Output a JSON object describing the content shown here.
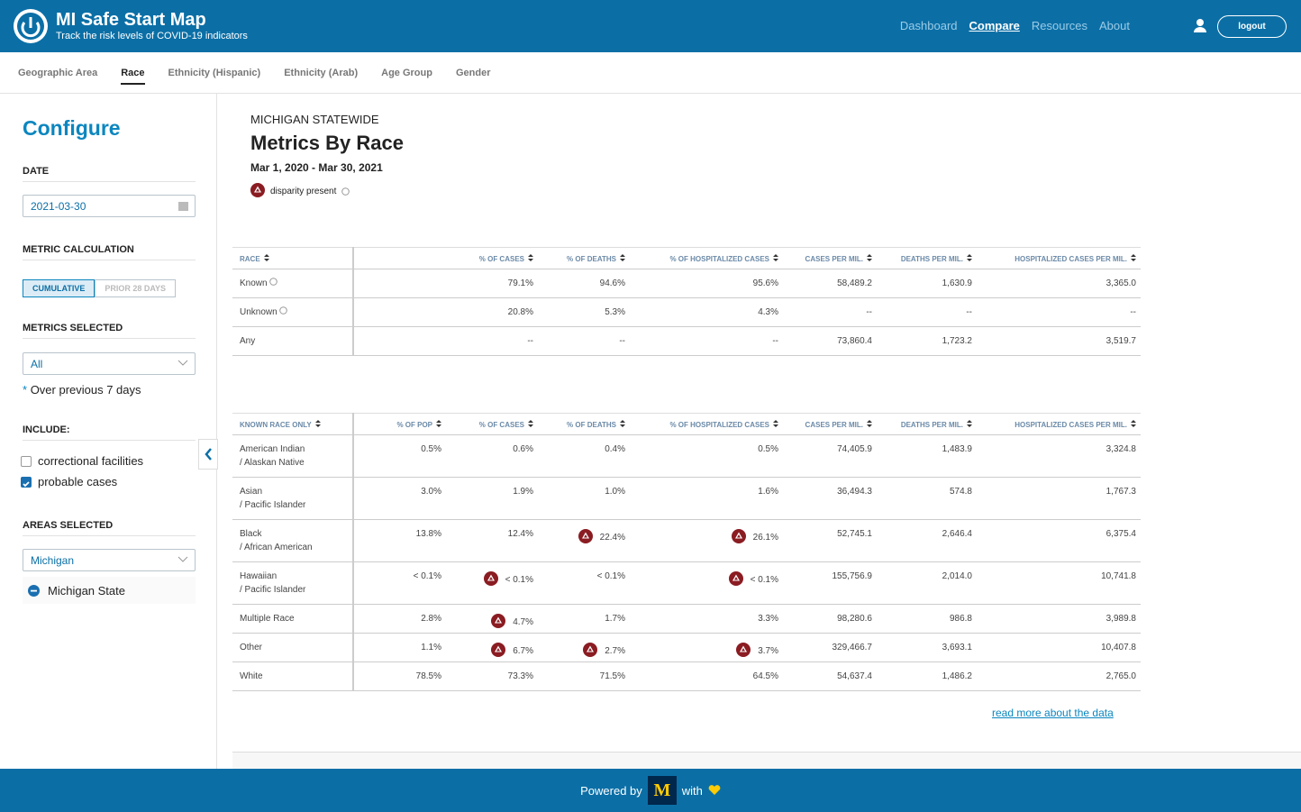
{
  "header": {
    "title": "MI Safe Start Map",
    "subtitle": "Track the risk levels of COVID-19 indicators",
    "nav": [
      "Dashboard",
      "Compare",
      "Resources",
      "About"
    ],
    "nav_active": 1,
    "logout": "logout"
  },
  "tabs": {
    "items": [
      "Geographic Area",
      "Race",
      "Ethnicity (Hispanic)",
      "Ethnicity (Arab)",
      "Age Group",
      "Gender"
    ],
    "active": 1
  },
  "sidebar": {
    "title": "Configure",
    "date_label": "DATE",
    "date": "2021-03-30",
    "metric_calc_label": "METRIC CALCULATION",
    "calc_options": [
      "CUMULATIVE",
      "PRIOR 28 DAYS"
    ],
    "calc_active": 0,
    "metrics_label": "METRICS SELECTED",
    "metrics_value": "All",
    "note_star": "*",
    "note": "Over previous 7 days",
    "include_label": "INCLUDE:",
    "include": [
      {
        "label": "correctional facilities",
        "checked": false
      },
      {
        "label": "probable cases",
        "checked": true
      }
    ],
    "areas_label": "AREAS SELECTED",
    "areas_value": "Michigan",
    "areas": [
      "Michigan State"
    ]
  },
  "main": {
    "region": "MICHIGAN STATEWIDE",
    "title": "Metrics By Race",
    "date_range": "Mar 1, 2020 - Mar 30, 2021",
    "legend": "disparity present",
    "table1": {
      "headers": [
        "RACE",
        "% OF CASES",
        "% OF DEATHS",
        "% OF HOSPITALIZED CASES",
        "CASES PER MIL.",
        "DEATHS PER MIL.",
        "HOSPITALIZED CASES PER MIL."
      ],
      "rows": [
        [
          [
            "Known"
          ],
          "79.1%",
          "94.6%",
          "95.6%",
          "58,489.2",
          "1,630.9",
          "3,365.0"
        ],
        [
          [
            "Unknown"
          ],
          "20.8%",
          "5.3%",
          "4.3%",
          "--",
          "--",
          "--"
        ],
        [
          [
            "Any"
          ],
          "--",
          "--",
          "--",
          "73,860.4",
          "1,723.2",
          "3,519.7"
        ]
      ]
    },
    "table2": {
      "headers": [
        "KNOWN RACE ONLY",
        "% OF POP",
        "% OF CASES",
        "% OF DEATHS",
        "% OF HOSPITALIZED CASES",
        "CASES PER MIL.",
        "DEATHS PER MIL.",
        "HOSPITALIZED CASES PER MIL."
      ],
      "rows": [
        [
          [
            "American Indian",
            "/ Alaskan Native"
          ],
          "0.5%",
          "0.6%",
          "0.4%",
          "0.5%",
          "74,405.9",
          "1,483.9",
          "3,324.8"
        ],
        [
          [
            "Asian",
            "/ Pacific Islander"
          ],
          "3.0%",
          "1.9%",
          "1.0%",
          "1.6%",
          "36,494.3",
          "574.8",
          "1,767.3"
        ],
        [
          [
            "Black",
            "/ African American"
          ],
          "13.8%",
          "12.4%",
          {
            "text": "22.4%",
            "disparity": true
          },
          {
            "text": "26.1%",
            "disparity": true
          },
          "52,745.1",
          "2,646.4",
          "6,375.4"
        ],
        [
          [
            "Hawaiian",
            "/ Pacific Islander"
          ],
          "< 0.1%",
          {
            "text": "< 0.1%",
            "disparity": true
          },
          "< 0.1%",
          {
            "text": "< 0.1%",
            "disparity": true
          },
          "155,756.9",
          "2,014.0",
          "10,741.8"
        ],
        [
          [
            "Multiple Race"
          ],
          "2.8%",
          {
            "text": "4.7%",
            "disparity": true
          },
          "1.7%",
          "3.3%",
          "98,280.6",
          "986.8",
          "3,989.8"
        ],
        [
          [
            "Other"
          ],
          "1.1%",
          {
            "text": "6.7%",
            "disparity": true
          },
          {
            "text": "2.7%",
            "disparity": true
          },
          {
            "text": "3.7%",
            "disparity": true
          },
          "329,466.7",
          "3,693.1",
          "10,407.8"
        ],
        [
          [
            "White"
          ],
          "78.5%",
          "73.3%",
          "71.5%",
          "64.5%",
          "54,637.4",
          "1,486.2",
          "2,765.0"
        ]
      ]
    },
    "read_more": "read more about the data"
  },
  "footer": {
    "powered": "Powered by",
    "with": "with"
  }
}
